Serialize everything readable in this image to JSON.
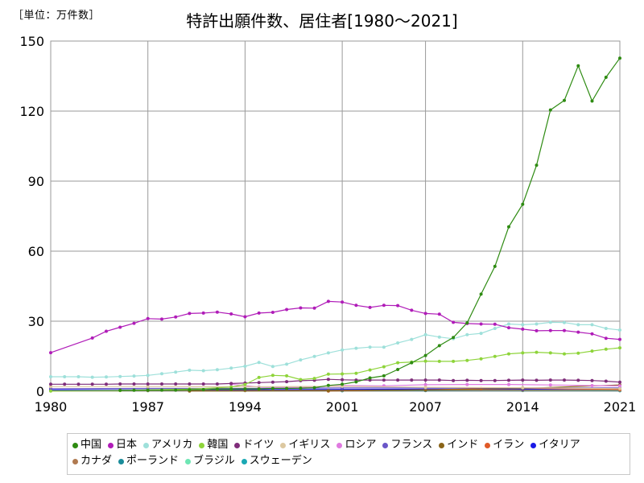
{
  "unit_label": "［単位：万件数］",
  "title": "特許出願件数、居住者[1980～2021]",
  "chart_data": {
    "type": "line",
    "title": "特許出願件数、居住者[1980～2021]",
    "unit": "［単位：万件数］",
    "xlim": [
      1980,
      2021
    ],
    "ylim": [
      0,
      150
    ],
    "x_ticks": [
      "1980",
      "1987",
      "1994",
      "2001",
      "2007",
      "2014",
      "2021"
    ],
    "y_ticks": [
      "0",
      "30",
      "60",
      "90",
      "120",
      "150"
    ],
    "grid": true,
    "legend_position": "bottom",
    "series": [
      {
        "name": "中国",
        "color": "#2e8b12",
        "x": [
          1985,
          1986,
          1987,
          1988,
          1989,
          1990,
          1991,
          1992,
          1993,
          1994,
          1995,
          1996,
          1997,
          1998,
          1999,
          2000,
          2001,
          2002,
          2003,
          2004,
          2005,
          2006,
          2007,
          2008,
          2009,
          2010,
          2011,
          2012,
          2013,
          2014,
          2015,
          2016,
          2017,
          2018,
          2019,
          2020,
          2021
        ],
        "values": [
          0.4,
          0.4,
          0.5,
          0.5,
          0.5,
          0.6,
          0.7,
          0.9,
          0.9,
          1.0,
          1.0,
          1.2,
          1.2,
          1.3,
          1.5,
          2.5,
          3.0,
          4.0,
          5.7,
          6.6,
          9.3,
          12.2,
          15.3,
          19.5,
          23.0,
          29.3,
          41.6,
          53.5,
          70.4,
          80.1,
          96.8,
          120.5,
          124.6,
          139.4,
          124.3,
          134.5,
          142.7
        ]
      },
      {
        "name": "日本",
        "color": "#b01cb8",
        "x": [
          1980,
          1983,
          1984,
          1985,
          1986,
          1987,
          1988,
          1989,
          1990,
          1991,
          1992,
          1993,
          1994,
          1995,
          1996,
          1997,
          1998,
          1999,
          2000,
          2001,
          2002,
          2003,
          2004,
          2005,
          2006,
          2007,
          2008,
          2009,
          2010,
          2011,
          2012,
          2013,
          2014,
          2015,
          2016,
          2017,
          2018,
          2019,
          2020,
          2021
        ],
        "values": [
          16.5,
          22.8,
          25.7,
          27.4,
          29.1,
          31.1,
          30.9,
          31.8,
          33.3,
          33.5,
          33.9,
          33.1,
          31.9,
          33.5,
          33.8,
          35.0,
          35.7,
          35.6,
          38.5,
          38.2,
          36.8,
          35.9,
          36.8,
          36.7,
          34.7,
          33.3,
          33.0,
          29.5,
          29.0,
          28.8,
          28.7,
          27.2,
          26.6,
          25.9,
          26.0,
          26.0,
          25.3,
          24.6,
          22.7,
          22.2
        ]
      },
      {
        "name": "アメリカ",
        "color": "#9ee0da",
        "x": [
          1980,
          1981,
          1982,
          1983,
          1984,
          1985,
          1986,
          1987,
          1988,
          1989,
          1990,
          1991,
          1992,
          1993,
          1994,
          1995,
          1996,
          1997,
          1998,
          1999,
          2000,
          2001,
          2002,
          2003,
          2004,
          2005,
          2006,
          2007,
          2008,
          2009,
          2010,
          2011,
          2012,
          2013,
          2014,
          2015,
          2016,
          2017,
          2018,
          2019,
          2020,
          2021
        ],
        "values": [
          6.2,
          6.2,
          6.2,
          6.0,
          6.1,
          6.3,
          6.5,
          6.8,
          7.5,
          8.2,
          9.0,
          8.8,
          9.2,
          9.9,
          10.7,
          12.3,
          10.6,
          11.6,
          13.4,
          14.9,
          16.4,
          17.7,
          18.4,
          18.9,
          18.9,
          20.7,
          22.2,
          24.2,
          23.2,
          22.5,
          24.2,
          24.8,
          26.9,
          28.8,
          28.5,
          28.8,
          29.5,
          29.4,
          28.5,
          28.5,
          26.9,
          26.2
        ]
      },
      {
        "name": "韓国",
        "color": "#8ed43a",
        "x": [
          1980,
          1985,
          1990,
          1993,
          1994,
          1995,
          1996,
          1997,
          1998,
          1999,
          2000,
          2001,
          2002,
          2003,
          2004,
          2005,
          2006,
          2007,
          2008,
          2009,
          2010,
          2011,
          2012,
          2013,
          2014,
          2015,
          2016,
          2017,
          2018,
          2019,
          2020,
          2021
        ],
        "values": [
          0.1,
          0.3,
          0.9,
          1.8,
          2.9,
          5.9,
          6.8,
          6.6,
          5.0,
          5.5,
          7.3,
          7.4,
          7.7,
          9.1,
          10.5,
          12.2,
          12.5,
          12.9,
          12.8,
          12.8,
          13.2,
          13.9,
          14.9,
          16.0,
          16.4,
          16.7,
          16.4,
          16.0,
          16.3,
          17.2,
          18.0,
          18.6
        ]
      },
      {
        "name": "ドイツ",
        "color": "#7f2d7a",
        "x": [
          1980,
          1981,
          1982,
          1983,
          1984,
          1985,
          1986,
          1987,
          1988,
          1989,
          1990,
          1991,
          1992,
          1993,
          1994,
          1995,
          1996,
          1997,
          1998,
          1999,
          2000,
          2001,
          2002,
          2003,
          2004,
          2005,
          2006,
          2007,
          2008,
          2009,
          2010,
          2011,
          2012,
          2013,
          2014,
          2015,
          2016,
          2017,
          2018,
          2019,
          2020,
          2021
        ],
        "values": [
          3.0,
          3.0,
          3.0,
          3.0,
          3.0,
          3.1,
          3.1,
          3.1,
          3.1,
          3.1,
          3.1,
          3.1,
          3.1,
          3.3,
          3.5,
          3.7,
          3.9,
          4.1,
          4.5,
          4.7,
          5.1,
          4.9,
          4.8,
          4.8,
          4.8,
          4.8,
          4.8,
          4.8,
          4.8,
          4.6,
          4.7,
          4.6,
          4.6,
          4.7,
          4.8,
          4.7,
          4.8,
          4.8,
          4.7,
          4.6,
          4.3,
          3.9
        ]
      },
      {
        "name": "イギリス",
        "color": "#dcc8a0",
        "x": [
          1980,
          1987,
          1994,
          2001,
          2007,
          2014,
          2021
        ],
        "values": [
          2.0,
          2.0,
          1.9,
          2.1,
          1.7,
          1.5,
          1.1
        ]
      },
      {
        "name": "ロシア",
        "color": "#e07ae0",
        "x": [
          1993,
          1995,
          1998,
          2001,
          2004,
          2007,
          2010,
          2013,
          2016,
          2019,
          2021
        ],
        "values": [
          3.0,
          1.8,
          1.6,
          2.4,
          2.3,
          2.8,
          2.9,
          2.9,
          2.7,
          2.4,
          2.3
        ]
      },
      {
        "name": "フランス",
        "color": "#6a56c8",
        "x": [
          1980,
          1987,
          1994,
          2001,
          2007,
          2014,
          2021
        ],
        "values": [
          1.1,
          1.2,
          1.2,
          1.4,
          1.4,
          1.4,
          1.4
        ]
      },
      {
        "name": "インド",
        "color": "#8a6418",
        "x": [
          1990,
          2000,
          2007,
          2014,
          2021
        ],
        "values": [
          0.1,
          0.2,
          0.6,
          1.2,
          2.7
        ]
      },
      {
        "name": "イラン",
        "color": "#e05a28",
        "x": [
          2000,
          2007,
          2011,
          2014,
          2021
        ],
        "values": [
          0.1,
          0.6,
          1.1,
          1.3,
          0.8
        ]
      },
      {
        "name": "イタリア",
        "color": "#1a1ae6",
        "x": [
          1980,
          1987,
          1994,
          2001,
          2007,
          2014,
          2021
        ],
        "values": [
          0.6,
          0.6,
          0.7,
          0.8,
          0.9,
          0.9,
          1.0
        ]
      },
      {
        "name": "カナダ",
        "color": "#b07a50",
        "x": [
          1980,
          1987,
          1994,
          2001,
          2007,
          2014,
          2021
        ],
        "values": [
          0.2,
          0.3,
          0.3,
          0.5,
          0.5,
          0.5,
          0.4
        ]
      },
      {
        "name": "ポーランド",
        "color": "#1a8c9a",
        "x": [
          1980,
          1987,
          1994,
          2001,
          2007,
          2014,
          2021
        ],
        "values": [
          0.5,
          0.4,
          0.3,
          0.2,
          0.3,
          0.4,
          0.4
        ]
      },
      {
        "name": "ブラジル",
        "color": "#6ee6b4",
        "x": [
          1980,
          1987,
          1994,
          2001,
          2007,
          2014,
          2021
        ],
        "values": [
          0.2,
          0.2,
          0.3,
          0.4,
          0.4,
          0.5,
          0.5
        ]
      },
      {
        "name": "スウェーデン",
        "color": "#1aa8b4",
        "x": [
          1980,
          1987,
          1994,
          2001,
          2007,
          2014,
          2021
        ],
        "values": [
          0.4,
          0.4,
          0.3,
          0.3,
          0.3,
          0.3,
          0.2
        ]
      }
    ]
  }
}
